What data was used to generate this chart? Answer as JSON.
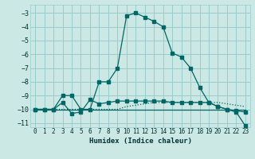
{
  "xlabel": "Humidex (Indice chaleur)",
  "bg_color": "#cce8e4",
  "grid_color": "#99cccc",
  "line_color": "#006666",
  "xlim": [
    -0.5,
    23.5
  ],
  "ylim": [
    -11.3,
    -2.4
  ],
  "xticks": [
    0,
    1,
    2,
    3,
    4,
    5,
    6,
    7,
    8,
    9,
    10,
    11,
    12,
    13,
    14,
    15,
    16,
    17,
    18,
    19,
    20,
    21,
    22,
    23
  ],
  "yticks": [
    -11,
    -10,
    -9,
    -8,
    -7,
    -6,
    -5,
    -4,
    -3
  ],
  "series_main_x": [
    0,
    1,
    2,
    3,
    4,
    5,
    6,
    7,
    8,
    9,
    10,
    11,
    12,
    13,
    14,
    15,
    16,
    17,
    18,
    19,
    20,
    21,
    22,
    23
  ],
  "series_main_y": [
    -10.0,
    -10.0,
    -10.0,
    -9.0,
    -9.0,
    -10.0,
    -10.0,
    -8.0,
    -8.0,
    -7.0,
    -3.2,
    -3.0,
    -3.3,
    -3.6,
    -4.0,
    -5.9,
    -6.2,
    -7.0,
    -8.4,
    -9.5,
    -9.8,
    -10.0,
    -10.2,
    -11.2
  ],
  "series_dot_x": [
    0,
    1,
    2,
    3,
    4,
    5,
    6,
    7,
    8,
    9,
    10,
    11,
    12,
    13,
    14,
    15,
    16,
    17,
    18,
    19,
    20,
    21,
    22,
    23
  ],
  "series_dot_y": [
    -10.0,
    -10.0,
    -10.0,
    -10.0,
    -10.0,
    -10.0,
    -10.0,
    -10.0,
    -10.0,
    -10.0,
    -9.8,
    -9.7,
    -9.6,
    -9.5,
    -9.5,
    -9.5,
    -9.5,
    -9.5,
    -9.5,
    -9.5,
    -9.5,
    -9.6,
    -9.7,
    -9.8
  ],
  "series_mid_x": [
    0,
    1,
    2,
    3,
    4,
    5,
    6,
    7,
    8,
    9,
    10,
    11,
    12,
    13,
    14,
    15,
    16,
    17,
    18,
    19,
    20,
    21,
    22,
    23
  ],
  "series_mid_y": [
    -10.0,
    -10.0,
    -10.0,
    -9.5,
    -10.3,
    -10.2,
    -9.3,
    -9.6,
    -9.5,
    -9.4,
    -9.4,
    -9.4,
    -9.4,
    -9.4,
    -9.4,
    -9.5,
    -9.5,
    -9.5,
    -9.5,
    -9.5,
    -9.8,
    -10.0,
    -10.1,
    -10.2
  ],
  "series_flat_x": [
    0,
    1,
    2,
    3,
    4,
    5,
    6,
    7,
    8,
    9,
    10,
    11,
    12,
    13,
    14,
    15,
    16,
    17,
    18,
    19,
    20,
    21,
    22,
    23
  ],
  "series_flat_y": [
    -10.0,
    -10.0,
    -10.0,
    -10.0,
    -10.0,
    -10.0,
    -10.0,
    -10.0,
    -10.0,
    -10.0,
    -10.0,
    -10.0,
    -10.0,
    -10.0,
    -10.0,
    -10.0,
    -10.0,
    -10.0,
    -10.0,
    -10.0,
    -10.0,
    -10.0,
    -10.0,
    -10.0
  ]
}
